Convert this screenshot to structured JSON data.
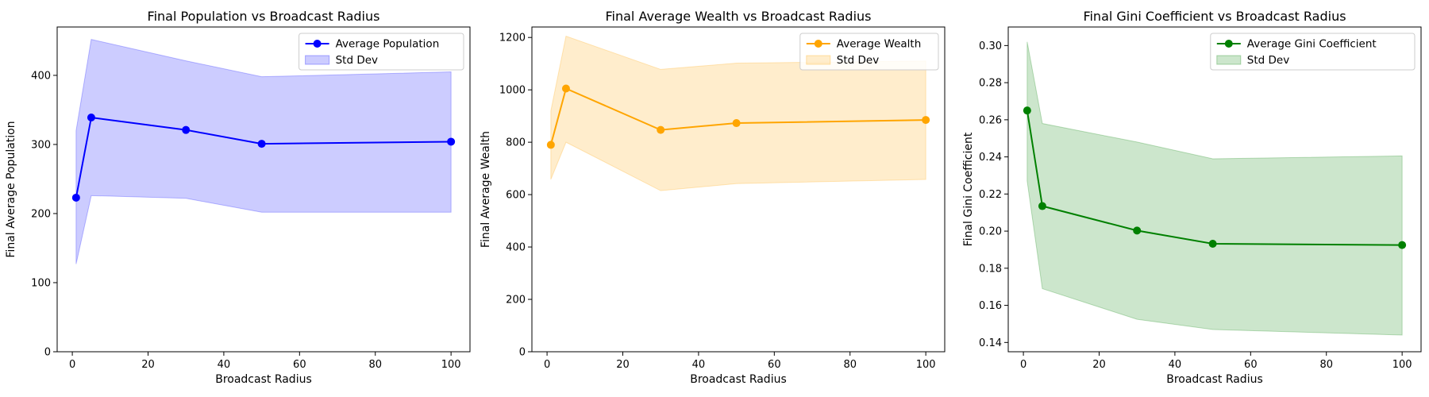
{
  "chart_data": [
    {
      "type": "line",
      "title": "Final Population vs Broadcast Radius",
      "xlabel": "Broadcast Radius",
      "ylabel": "Final Average Population",
      "x": [
        1,
        5,
        30,
        50,
        100
      ],
      "xlim": [
        -4,
        105
      ],
      "xticks": [
        0,
        20,
        40,
        60,
        80,
        100
      ],
      "ylim": [
        0,
        470
      ],
      "yticks": [
        0,
        100,
        200,
        300,
        400
      ],
      "yformat": 0,
      "color": "#0000ff",
      "series": [
        {
          "name": "Average Population",
          "values": [
            223,
            339,
            321,
            301,
            304
          ]
        }
      ],
      "band": {
        "name": "Std Dev",
        "upper": [
          320,
          452,
          421,
          398,
          405
        ],
        "lower": [
          127,
          226,
          222,
          202,
          202
        ]
      },
      "legend_position": "top-right",
      "grid": false
    },
    {
      "type": "line",
      "title": "Final Average Wealth vs Broadcast Radius",
      "xlabel": "Broadcast Radius",
      "ylabel": "Final Average Wealth",
      "x": [
        1,
        5,
        30,
        50,
        100
      ],
      "xlim": [
        -4,
        105
      ],
      "xticks": [
        0,
        20,
        40,
        60,
        80,
        100
      ],
      "ylim": [
        0,
        1240
      ],
      "yticks": [
        0,
        200,
        400,
        600,
        800,
        1000,
        1200
      ],
      "yformat": 0,
      "color": "#ffa500",
      "series": [
        {
          "name": "Average Wealth",
          "values": [
            790,
            1005,
            847,
            873,
            885
          ]
        }
      ],
      "band": {
        "name": "Std Dev",
        "upper": [
          920,
          1205,
          1078,
          1102,
          1110
        ],
        "lower": [
          658,
          800,
          615,
          642,
          658
        ]
      },
      "legend_position": "top-right",
      "grid": false
    },
    {
      "type": "line",
      "title": "Final Gini Coefficient vs Broadcast Radius",
      "xlabel": "Broadcast Radius",
      "ylabel": "Final Gini Coefficient",
      "x": [
        1,
        5,
        30,
        50,
        100
      ],
      "xlim": [
        -4,
        105
      ],
      "xticks": [
        0,
        20,
        40,
        60,
        80,
        100
      ],
      "ylim": [
        0.135,
        0.31
      ],
      "yticks": [
        0.14,
        0.16,
        0.18,
        0.2,
        0.22,
        0.24,
        0.26,
        0.28,
        0.3
      ],
      "yformat": 2,
      "color": "#008000",
      "series": [
        {
          "name": "Average Gini Coefficient",
          "values": [
            0.265,
            0.2135,
            0.2003,
            0.1932,
            0.1925
          ]
        }
      ],
      "band": {
        "name": "Std Dev",
        "upper": [
          0.302,
          0.258,
          0.248,
          0.239,
          0.2405
        ],
        "lower": [
          0.227,
          0.169,
          0.1525,
          0.147,
          0.144
        ]
      },
      "legend_position": "top-right",
      "grid": false
    }
  ]
}
